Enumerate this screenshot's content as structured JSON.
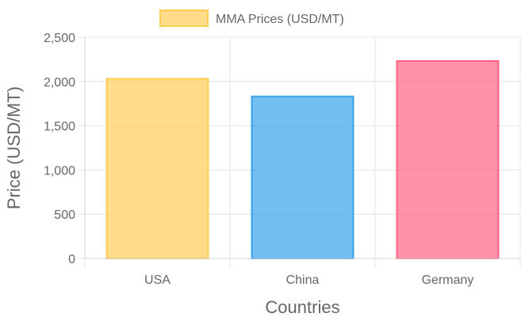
{
  "chart_data": {
    "type": "bar",
    "categories": [
      "USA",
      "China",
      "Germany"
    ],
    "series": [
      {
        "name": "MMA Prices (USD/MT)",
        "values": [
          2040,
          1840,
          2240
        ]
      }
    ],
    "bar_fills": [
      "rgba(253,205,86,0.7)",
      "rgba(54,162,235,0.7)",
      "rgba(255,99,132,0.7)"
    ],
    "bar_borders": [
      "#fdcd56",
      "#36a2eb",
      "#ff6384"
    ],
    "xlabel": "Countries",
    "ylabel": "Price (USD/MT)",
    "ylim": [
      0,
      2500
    ],
    "yticks": [
      0,
      500,
      1000,
      1500,
      2000,
      2500
    ],
    "ytick_labels": [
      "0",
      "500",
      "1,000",
      "1,500",
      "2,000",
      "2,500"
    ],
    "grid": true,
    "legend_position": "top"
  }
}
